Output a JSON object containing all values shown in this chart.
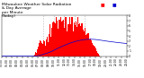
{
  "title_line1": "Milwaukee Weather Solar Radiation",
  "title_line2": "& Day Average",
  "title_line3": "per Minute",
  "title_line4": "(Today)",
  "bg_color": "#ffffff",
  "plot_bg_color": "#ffffff",
  "bar_color": "#ff0000",
  "avg_line_color": "#0000cc",
  "grid_color": "#bbbbbb",
  "text_color": "#000000",
  "ylim_max": 8,
  "yticks": [
    0,
    1,
    2,
    3,
    4,
    5,
    6,
    7,
    8
  ],
  "num_points": 1440,
  "rise_minute": 370,
  "peak_minute": 760,
  "sunset_minute": 1130,
  "peak_value": 7.8,
  "title_fontsize": 3.2,
  "tick_fontsize": 2.2,
  "legend_fontsize": 2.5,
  "dashed_vlines": [
    480,
    600,
    720,
    840,
    960
  ],
  "xtick_step": 60
}
